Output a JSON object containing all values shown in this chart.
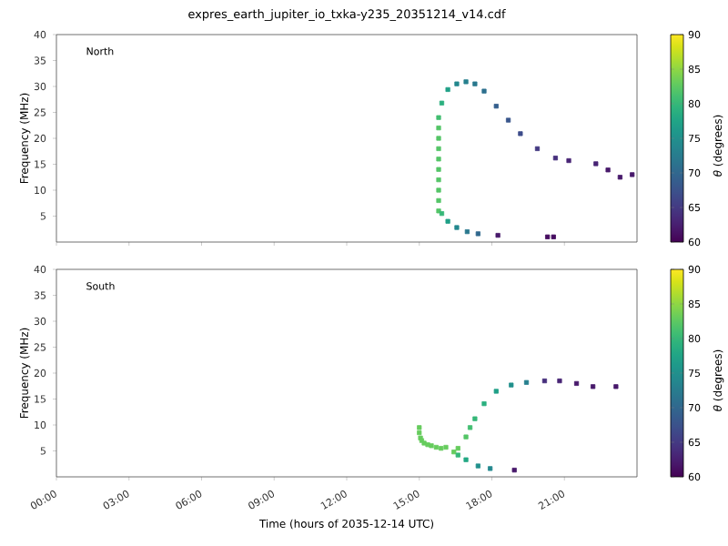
{
  "chart_data": [
    {
      "type": "scatter",
      "title": "expres_earth_jupiter_io_txka-y235_20351214_v14.cdf",
      "ylabel": "Frequency (MHz)",
      "clabel": "*θ* (degrees)",
      "annotations": [
        "North"
      ],
      "marker": "square",
      "tick_labels": "y",
      "x": [
        15.8,
        15.8,
        15.8,
        15.8,
        15.8,
        15.8,
        15.8,
        15.8,
        15.8,
        15.8,
        15.93,
        16.18,
        16.55,
        16.93,
        17.3,
        17.68,
        18.18,
        18.68,
        19.18,
        19.88,
        20.63,
        21.18,
        22.3,
        22.8,
        23.3,
        23.8,
        15.93,
        16.18,
        16.55,
        16.98,
        17.43,
        18.25,
        20.3,
        20.55
      ],
      "values": [
        6,
        8,
        10,
        12,
        14,
        16,
        18,
        20,
        22,
        24,
        26.8,
        29.4,
        30.5,
        30.9,
        30.5,
        29.1,
        26.2,
        23.5,
        20.9,
        18.0,
        16.2,
        15.7,
        15.1,
        13.9,
        12.5,
        13.0,
        5.5,
        4.0,
        2.8,
        2.0,
        1.6,
        1.3,
        1.0,
        1.0
      ],
      "cvalues": [
        82,
        82,
        82,
        82,
        82,
        82,
        82,
        82,
        82,
        81,
        79,
        77,
        74,
        73,
        72,
        71,
        69,
        68,
        67,
        65,
        64,
        63,
        63,
        62,
        62,
        62,
        80,
        77,
        74,
        72,
        70,
        62,
        61,
        61
      ],
      "xlim": [
        0,
        24
      ],
      "ylim": [
        0,
        40
      ],
      "xticks": [
        {
          "value": 0,
          "label": null
        },
        {
          "value": 3,
          "label": null
        },
        {
          "value": 6,
          "label": null
        },
        {
          "value": 9,
          "label": null
        },
        {
          "value": 12,
          "label": null
        },
        {
          "value": 15,
          "label": null
        },
        {
          "value": 18,
          "label": null
        },
        {
          "value": 21,
          "label": null
        }
      ],
      "yticks": [
        5,
        10,
        15,
        20,
        25,
        30,
        35,
        40
      ],
      "clim": [
        60,
        90
      ],
      "cticks": [
        60,
        65,
        70,
        75,
        80,
        85,
        90
      ]
    },
    {
      "type": "scatter",
      "xlabel": "Time (hours of 2035-12-14 UTC)",
      "ylabel": "Frequency (MHz)",
      "clabel": "*θ* (degrees)",
      "annotations": [
        "South"
      ],
      "marker": "square",
      "x": [
        15.0,
        15.0,
        15.05,
        15.1,
        15.2,
        15.35,
        15.5,
        15.7,
        15.9,
        16.1,
        16.43,
        16.6,
        16.93,
        17.1,
        17.3,
        17.68,
        18.18,
        18.8,
        19.43,
        20.18,
        20.8,
        21.5,
        22.18,
        23.13,
        16.6,
        16.93,
        17.43,
        17.93,
        18.93
      ],
      "values": [
        9.5,
        8.5,
        7.5,
        7.0,
        6.5,
        6.2,
        6.0,
        5.7,
        5.5,
        5.7,
        4.8,
        5.5,
        7.7,
        9.5,
        11.2,
        14.1,
        16.5,
        17.7,
        18.2,
        18.5,
        18.5,
        18.0,
        17.4,
        17.4,
        4.2,
        3.3,
        2.1,
        1.6,
        1.3
      ],
      "cvalues": [
        83,
        83,
        83,
        83,
        83,
        83,
        83,
        83,
        83,
        83,
        83,
        83,
        82,
        81,
        80,
        79,
        77,
        75,
        73,
        64,
        63,
        62,
        62,
        62,
        80,
        78,
        75,
        74,
        62
      ],
      "xlim": [
        0,
        24
      ],
      "ylim": [
        0,
        40
      ],
      "xticks": [
        {
          "value": 0,
          "label": "00:00"
        },
        {
          "value": 3,
          "label": "03:00"
        },
        {
          "value": 6,
          "label": "06:00"
        },
        {
          "value": 9,
          "label": "09:00"
        },
        {
          "value": 12,
          "label": "12:00"
        },
        {
          "value": 15,
          "label": "15:00"
        },
        {
          "value": 18,
          "label": "18:00"
        },
        {
          "value": 21,
          "label": "21:00"
        }
      ],
      "yticks": [
        5,
        10,
        15,
        20,
        25,
        30,
        35,
        40
      ],
      "clim": [
        60,
        90
      ],
      "cticks": [
        60,
        65,
        70,
        75,
        80,
        85,
        90
      ]
    }
  ]
}
